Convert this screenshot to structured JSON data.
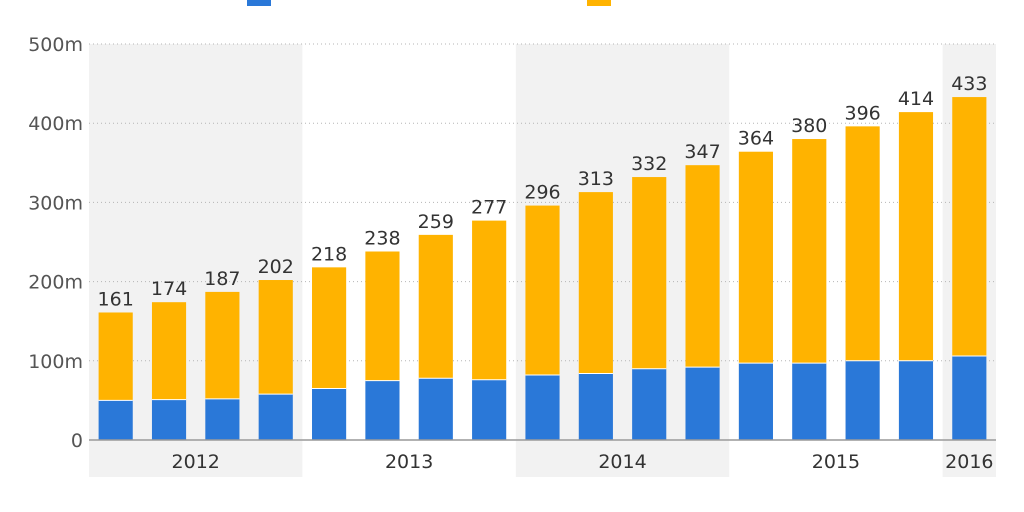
{
  "chart_data": {
    "type": "bar",
    "stacked": true,
    "categories": [
      "2012 Q1",
      "2012 Q2",
      "2012 Q3",
      "2012 Q4",
      "2013 Q1",
      "2013 Q2",
      "2013 Q3",
      "2013 Q4",
      "2014 Q1",
      "2014 Q2",
      "2014 Q3",
      "2014 Q4",
      "2015 Q1",
      "2015 Q2",
      "2015 Q3",
      "2015 Q4",
      "2016 Q1"
    ],
    "series": [
      {
        "color": "#2a78d8",
        "values": [
          50,
          51,
          52,
          58,
          65,
          75,
          78,
          76,
          82,
          84,
          90,
          92,
          97,
          97,
          100,
          100,
          106
        ]
      },
      {
        "color": "#ffb300",
        "values": [
          111,
          123,
          135,
          144,
          153,
          163,
          181,
          201,
          214,
          229,
          242,
          255,
          267,
          283,
          296,
          314,
          327
        ]
      }
    ],
    "totals": [
      "161",
      "174",
      "187",
      "202",
      "218",
      "238",
      "259",
      "277",
      "296",
      "313",
      "332",
      "347",
      "364",
      "380",
      "396",
      "414",
      "433"
    ],
    "year_groups": [
      {
        "label": "2012",
        "count": 4,
        "shaded": true
      },
      {
        "label": "2013",
        "count": 4,
        "shaded": false
      },
      {
        "label": "2014",
        "count": 4,
        "shaded": true
      },
      {
        "label": "2015",
        "count": 4,
        "shaded": false
      },
      {
        "label": "2016",
        "count": 1,
        "shaded": true
      }
    ],
    "yticks": [
      {
        "value": 0,
        "label": "0"
      },
      {
        "value": 100,
        "label": "100m"
      },
      {
        "value": 200,
        "label": "200m"
      },
      {
        "value": 300,
        "label": "300m"
      },
      {
        "value": 400,
        "label": "400m"
      },
      {
        "value": 500,
        "label": "500m"
      }
    ],
    "ylim": [
      0,
      500
    ],
    "grid": true,
    "legend_position": "top"
  }
}
